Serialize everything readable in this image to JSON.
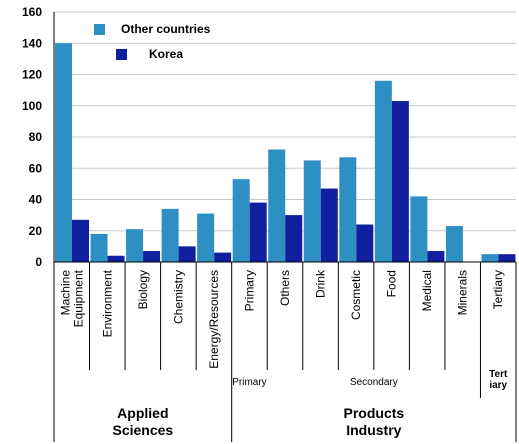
{
  "chart_data": {
    "type": "bar",
    "ylim": [
      0,
      160
    ],
    "yticks": [
      0,
      20,
      40,
      60,
      80,
      100,
      120,
      140,
      160
    ],
    "grid": true,
    "legend_position": "top-left",
    "categories": [
      "Machine Equipment",
      "Environment",
      "Biology",
      "Chemistry",
      "Energy/Resources",
      "Primary",
      "Others",
      "Drink",
      "Cosmetic",
      "Food",
      "Medical",
      "Minerals",
      "Tertiary"
    ],
    "category_lines": [
      [
        "Machine",
        "Equipment"
      ],
      [
        "Environment"
      ],
      [
        "Biology"
      ],
      [
        "Chemistry"
      ],
      [
        "Energy/Resources"
      ],
      [
        "Primary"
      ],
      [
        "Others"
      ],
      [
        "Drink"
      ],
      [
        "Cosmetic"
      ],
      [
        "Food"
      ],
      [
        "Medical"
      ],
      [
        "Minerals"
      ],
      [
        "Tertiary"
      ]
    ],
    "series": [
      {
        "name": "Other countries",
        "color": "#2E8FC3",
        "values": [
          140,
          18,
          21,
          34,
          31,
          53,
          72,
          65,
          67,
          116,
          42,
          23,
          5
        ]
      },
      {
        "name": "Korea",
        "color": "#0F1F9E",
        "values": [
          27,
          4,
          7,
          10,
          6,
          38,
          30,
          47,
          24,
          103,
          7,
          0,
          5
        ]
      }
    ],
    "subgroups": [
      {
        "label": "Primary",
        "from": 5,
        "to": 5
      },
      {
        "label": "Secondary",
        "from": 6,
        "to": 11
      },
      {
        "label": "Tert iary",
        "lines": [
          "Tert",
          "iary"
        ],
        "from": 12,
        "to": 12
      }
    ],
    "groups": [
      {
        "label": "Applied Sciences",
        "lines": [
          "Applied",
          "Sciences"
        ],
        "from": 0,
        "to": 4
      },
      {
        "label": "Products Industry",
        "lines": [
          "Products",
          "Industry"
        ],
        "from": 5,
        "to": 12
      }
    ]
  }
}
